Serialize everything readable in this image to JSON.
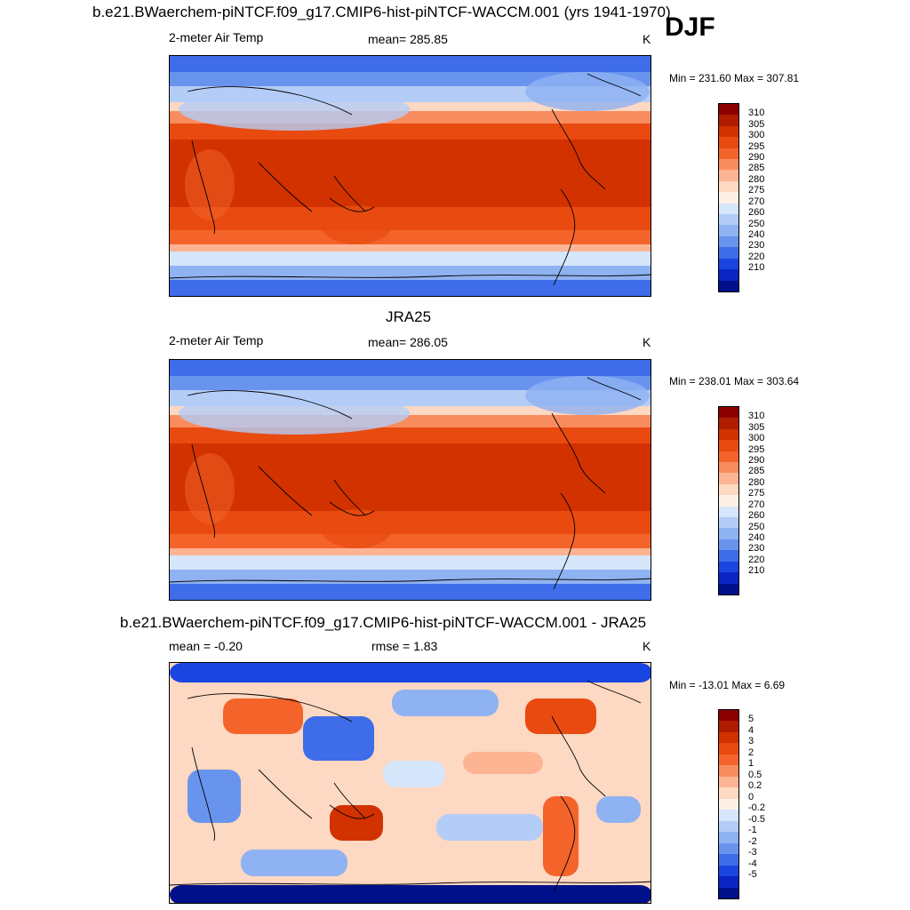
{
  "season": "DJF",
  "panels": [
    {
      "title": "b.e21.BWaerchem-piNTCF.f09_g17.CMIP6-hist-piNTCF-WACCM.001 (yrs 1941-1970)",
      "left_label": "2-meter Air Temp",
      "center_label": "mean= 285.85",
      "units": "K",
      "minmax": "Min = 231.60 Max = 307.81",
      "kind": "model"
    },
    {
      "title": "JRA25",
      "left_label": "2-meter Air Temp",
      "center_label": "mean= 286.05",
      "units": "K",
      "minmax": "Min = 238.01 Max = 303.64",
      "kind": "obs"
    },
    {
      "title": "b.e21.BWaerchem-piNTCF.f09_g17.CMIP6-hist-piNTCF-WACCM.001 - JRA25",
      "left_label": "mean =  -0.20",
      "center_label": "rmse =   1.83",
      "units": "K",
      "minmax": "Min = -13.01 Max =   6.69",
      "kind": "diff"
    }
  ],
  "colorbars": {
    "temp": {
      "labels": [
        "310",
        "305",
        "300",
        "295",
        "290",
        "285",
        "280",
        "275",
        "270",
        "260",
        "250",
        "240",
        "230",
        "220",
        "210"
      ],
      "colors": [
        "#8c0000",
        "#b01c00",
        "#d23200",
        "#e84a10",
        "#f4642a",
        "#f98c5e",
        "#fcb493",
        "#fdd8c2",
        "#fdf0e6",
        "#d6e6fb",
        "#b3cdf7",
        "#8fb2f2",
        "#6994ee",
        "#3f6ce8",
        "#1b45e0",
        "#0a25c4",
        "#00108a"
      ]
    },
    "diff": {
      "labels": [
        "5",
        "4",
        "3",
        "2",
        "1",
        "0.5",
        "0.2",
        "0",
        "-0.2",
        "-0.5",
        "-1",
        "-2",
        "-3",
        "-4",
        "-5"
      ],
      "colors": [
        "#8c0000",
        "#b01c00",
        "#d23200",
        "#e84a10",
        "#f4642a",
        "#f98c5e",
        "#fcb493",
        "#fdd8c2",
        "#fdf0e6",
        "#d6e6fb",
        "#b3cdf7",
        "#8fb2f2",
        "#6994ee",
        "#3f6ce8",
        "#1b45e0",
        "#0a25c4",
        "#00108a"
      ]
    }
  }
}
